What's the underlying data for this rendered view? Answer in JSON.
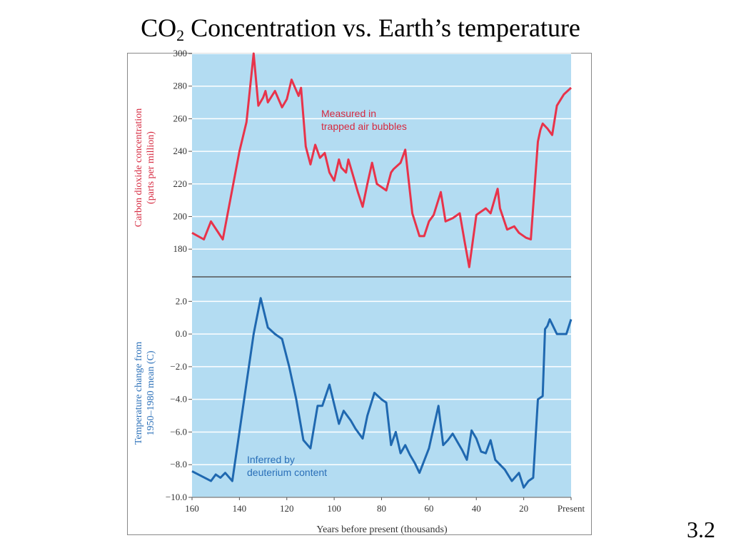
{
  "slide": {
    "title_prefix": "CO",
    "title_subscript": "2",
    "title_suffix": " Concentration vs. Earth’s temperature",
    "number": "3.2"
  },
  "colors": {
    "panel_bg": "#b3dcf2",
    "co2_line": "#e8334a",
    "temp_line": "#1f68b0",
    "co2_text": "#d62a40",
    "temp_text": "#2a6fb8",
    "grid": "#ffffff",
    "divider": "#555555"
  },
  "chart_data": [
    {
      "type": "line",
      "title": "",
      "ylabel": "Carbon dioxide concentration (parts per million)",
      "ylabel_lines": [
        "Carbon dioxide concentration",
        "(parts per million)"
      ],
      "annotation_lines": [
        "Measured in",
        "trapped air bubbles"
      ],
      "xlim": [
        160,
        0
      ],
      "ylim": [
        163,
        300
      ],
      "yticks": [
        180,
        200,
        220,
        240,
        260,
        280,
        300
      ],
      "grid": true,
      "series": [
        {
          "x": [
            160,
            155,
            152,
            147,
            140,
            137,
            134,
            132,
            130,
            129,
            128,
            125,
            122,
            120,
            118,
            115,
            114,
            112,
            110,
            108,
            106,
            104,
            102,
            100,
            98,
            97,
            95,
            94,
            92,
            90,
            88,
            86,
            84,
            82,
            80,
            78,
            76,
            75,
            72,
            70,
            67,
            64,
            62,
            60,
            58,
            55,
            53,
            50,
            47,
            45,
            43,
            40,
            36,
            34,
            32,
            31,
            30,
            27,
            24,
            22,
            19,
            17,
            14,
            13,
            12,
            10,
            8,
            6,
            3,
            0
          ],
          "y": [
            190,
            186,
            197,
            186,
            240,
            258,
            300,
            268,
            273,
            277,
            270,
            277,
            267,
            272,
            284,
            274,
            279,
            243,
            232,
            244,
            236,
            239,
            227,
            222,
            235,
            230,
            227,
            235,
            225,
            215,
            206,
            220,
            233,
            220,
            218,
            216,
            227,
            229,
            233,
            241,
            202,
            188,
            188,
            197,
            201,
            215,
            197,
            199,
            202,
            185,
            169,
            201,
            205,
            202,
            212,
            217,
            205,
            192,
            194,
            190,
            187,
            186,
            246,
            253,
            257,
            254,
            250,
            268,
            275,
            279
          ]
        }
      ]
    },
    {
      "type": "line",
      "title": "",
      "xlabel": "Years before present (thousands)",
      "ylabel": "Temperature change from 1950–1980 mean (C)",
      "ylabel_lines": [
        "Temperature change from",
        "1950–1980 mean (C)"
      ],
      "annotation_lines": [
        "Inferred by",
        "deuterium content"
      ],
      "xlim": [
        160,
        0
      ],
      "ylim": [
        -10,
        3.5
      ],
      "yticks": [
        2.0,
        0.0,
        -2.0,
        -4.0,
        -6.0,
        -8.0,
        -10.0
      ],
      "xticks": [
        160,
        140,
        120,
        100,
        80,
        60,
        40,
        20,
        0
      ],
      "xtick_labels": [
        "160",
        "140",
        "120",
        "100",
        "80",
        "60",
        "40",
        "20",
        "Present"
      ],
      "grid": true,
      "series": [
        {
          "x": [
            160,
            152,
            150,
            148,
            146,
            143,
            140,
            137,
            134,
            131,
            128,
            125,
            122,
            119,
            116,
            113,
            110,
            107,
            105,
            102,
            100,
            98,
            96,
            94,
            93,
            91,
            88,
            86,
            83,
            80,
            78,
            76,
            74,
            72,
            70,
            68,
            66,
            64,
            60,
            56,
            54,
            52,
            50,
            48,
            46,
            44,
            42,
            40,
            38,
            36,
            34,
            32,
            30,
            28,
            25,
            22,
            20,
            18,
            16,
            14,
            12,
            11,
            10,
            9,
            8,
            6,
            4,
            2,
            0
          ],
          "y": [
            -8.4,
            -9.0,
            -8.6,
            -8.8,
            -8.5,
            -9.0,
            -6.0,
            -3.0,
            0.0,
            2.2,
            0.4,
            0.0,
            -0.3,
            -2.0,
            -4.0,
            -6.5,
            -7.0,
            -4.4,
            -4.4,
            -3.1,
            -4.3,
            -5.5,
            -4.7,
            -5.1,
            -5.3,
            -5.8,
            -6.4,
            -5.0,
            -3.6,
            -4.0,
            -4.2,
            -6.8,
            -6.0,
            -7.3,
            -6.8,
            -7.4,
            -7.9,
            -8.5,
            -7.0,
            -4.4,
            -6.8,
            -6.5,
            -6.1,
            -6.6,
            -7.1,
            -7.7,
            -5.9,
            -6.4,
            -7.2,
            -7.3,
            -6.5,
            -7.7,
            -8.0,
            -8.3,
            -9.0,
            -8.5,
            -9.4,
            -9.0,
            -8.8,
            -4.0,
            -3.8,
            0.3,
            0.5,
            0.9,
            0.6,
            0.0,
            0.0,
            0.0,
            0.9
          ]
        }
      ]
    }
  ]
}
